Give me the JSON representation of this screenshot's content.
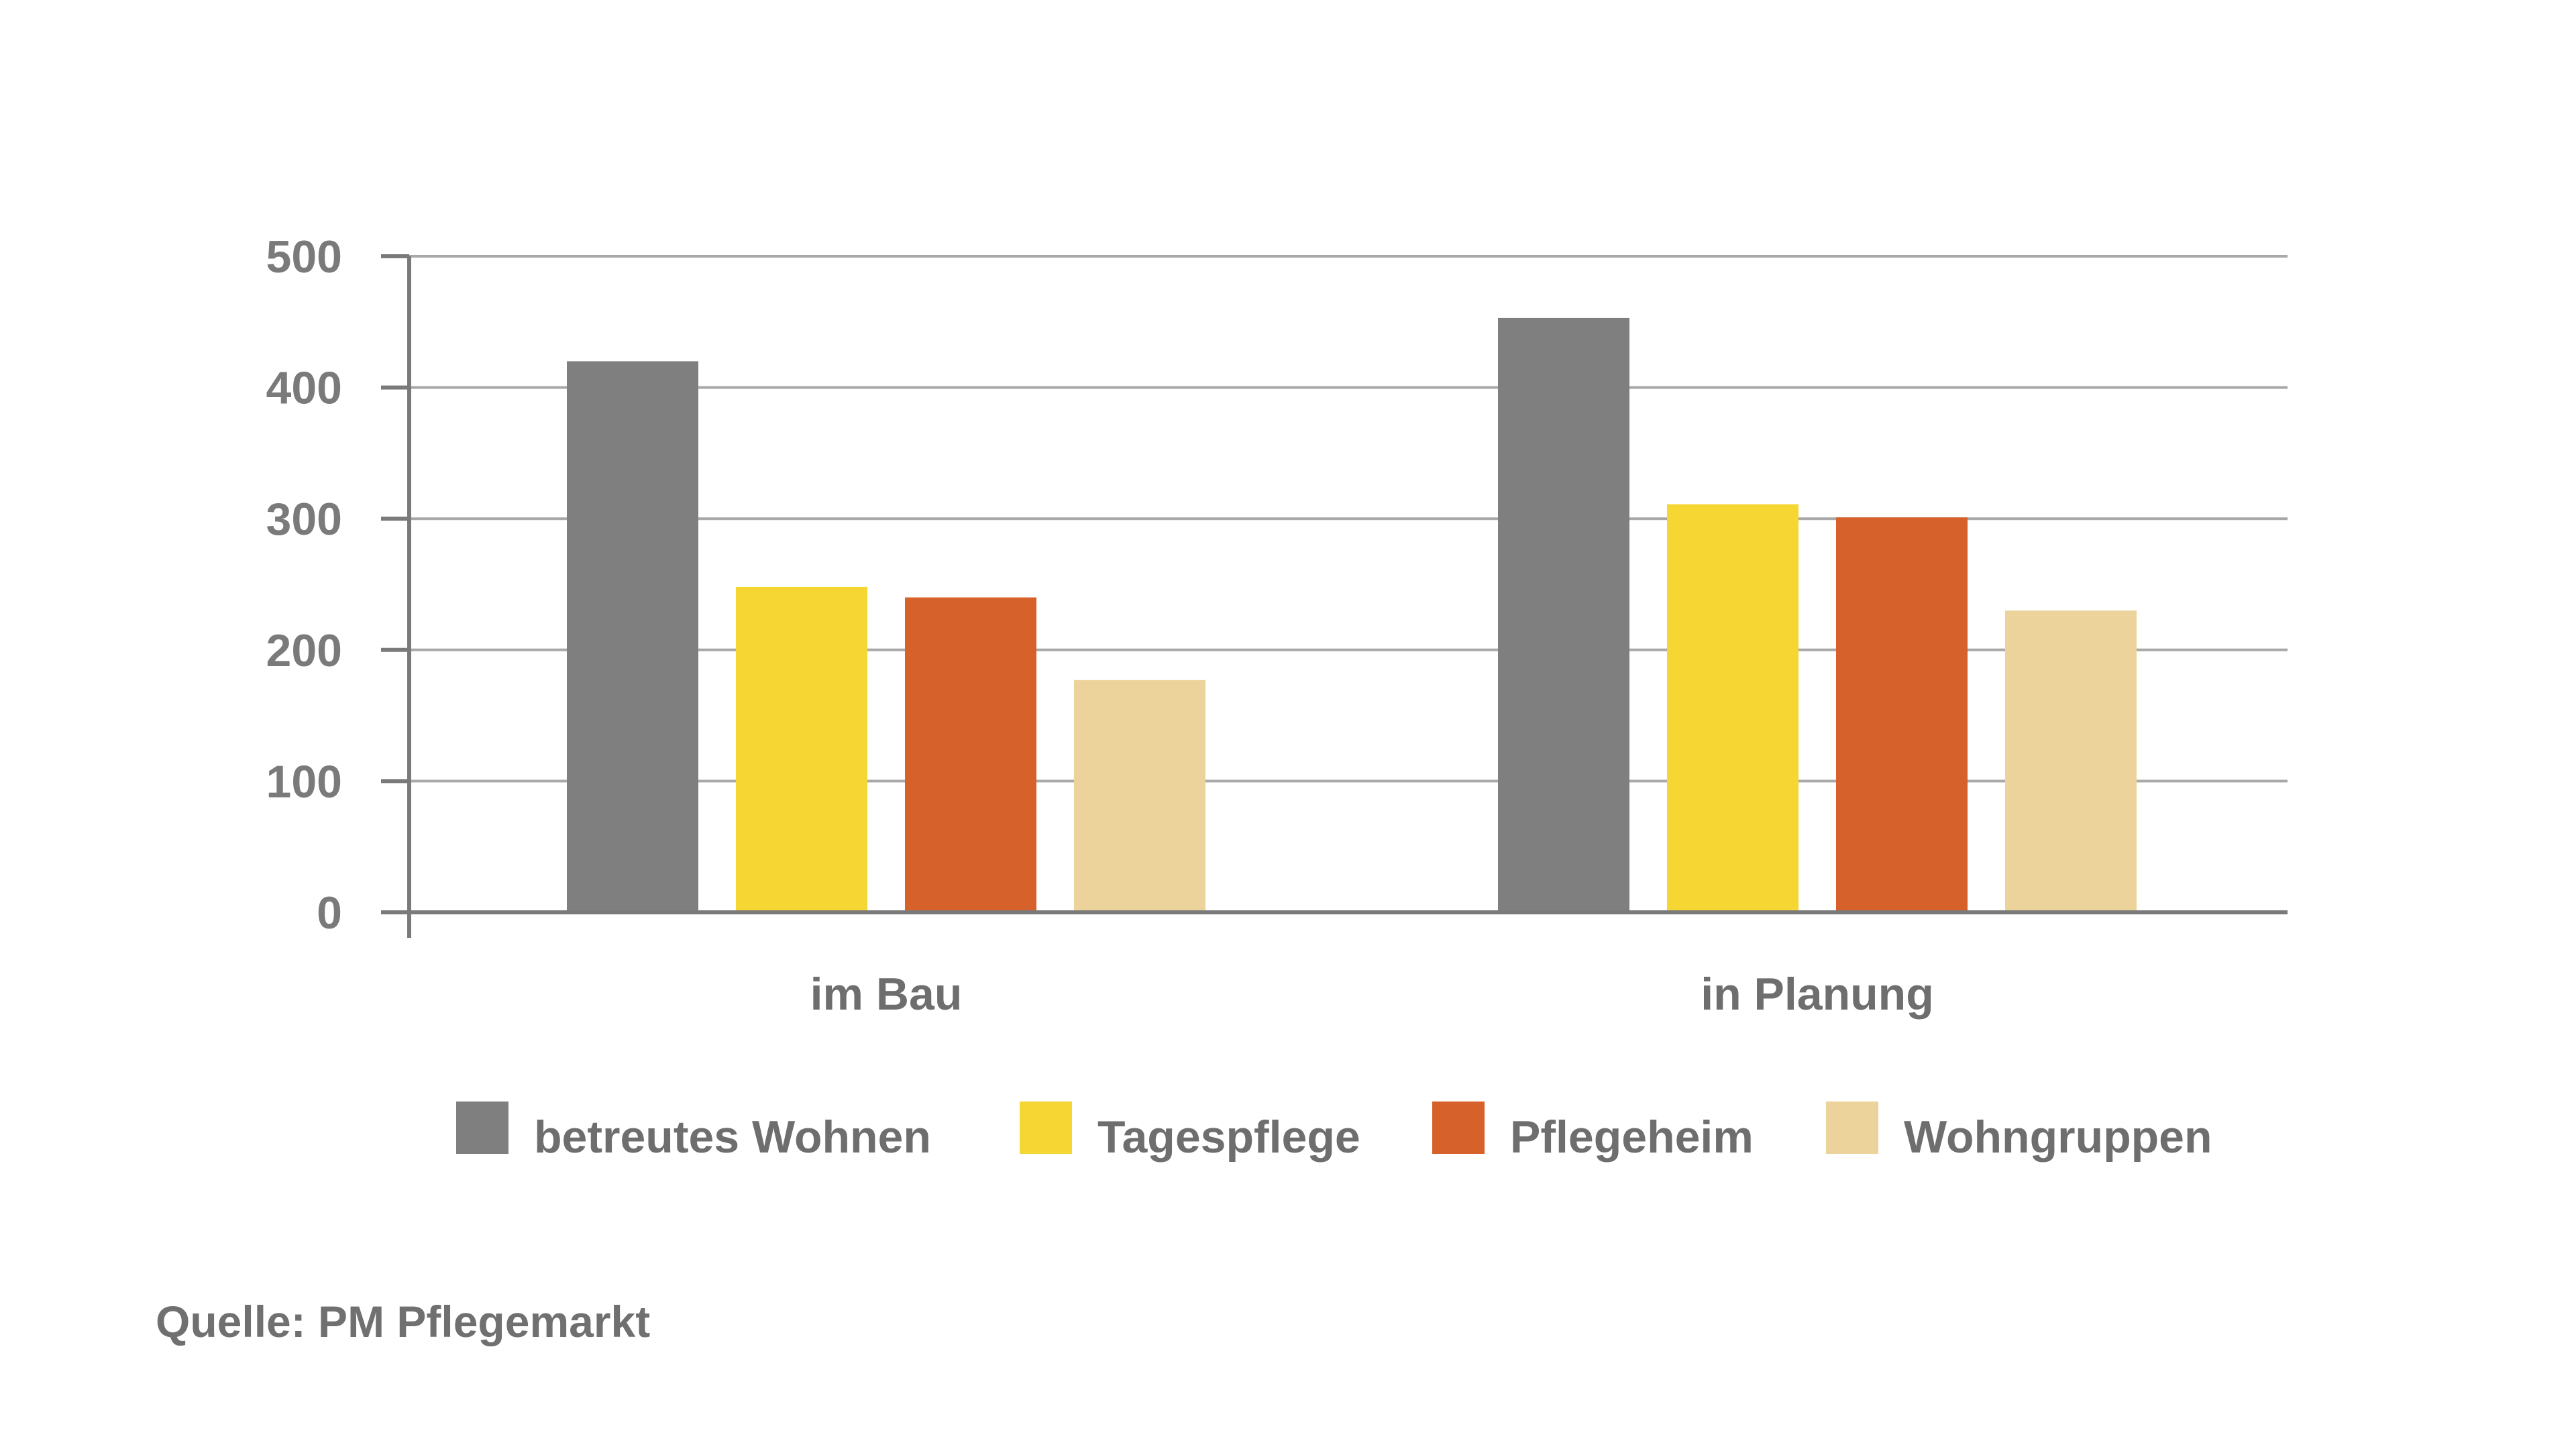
{
  "chart_data": {
    "type": "bar",
    "title": "",
    "xlabel": "",
    "ylabel": "",
    "categories": [
      "im Bau",
      "in Planung"
    ],
    "ylim": [
      0,
      500
    ],
    "yticks": [
      0,
      100,
      200,
      300,
      400,
      500
    ],
    "grid": true,
    "legend_position": "bottom",
    "series": [
      {
        "name": "betreutes Wohnen",
        "values": [
          420,
          453
        ],
        "color": "#7f7f7f"
      },
      {
        "name": "Tagespflege",
        "values": [
          248,
          311
        ],
        "color": "#f5d633"
      },
      {
        "name": "Pflegeheim",
        "values": [
          240,
          301
        ],
        "color": "#d6612a"
      },
      {
        "name": "Wohngruppen",
        "values": [
          177,
          230
        ],
        "color": "#ecd39c"
      }
    ]
  },
  "source_note": "Quelle: PM Pflegemarkt"
}
